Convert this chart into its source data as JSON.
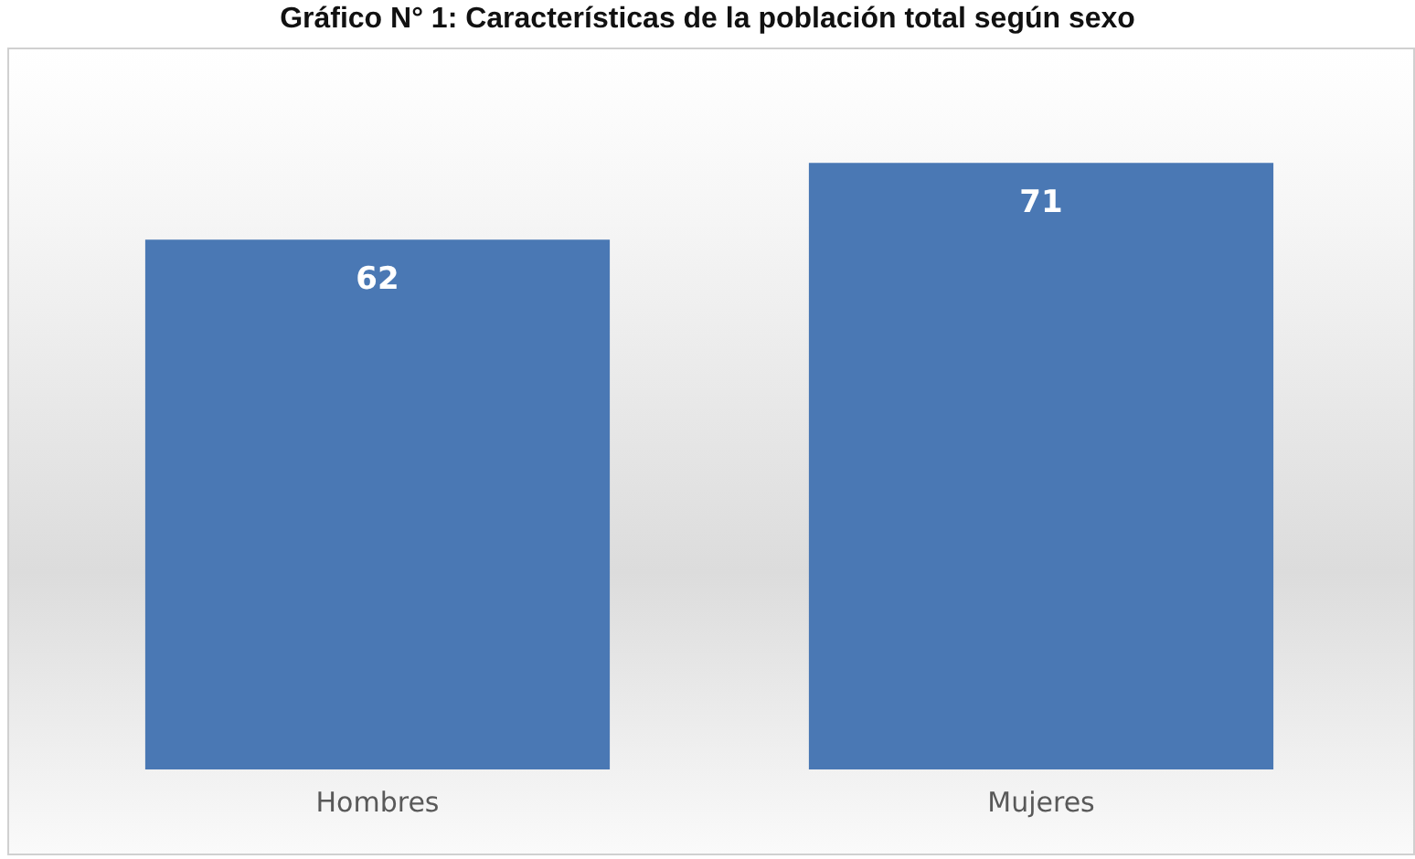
{
  "chart_data": {
    "type": "bar",
    "title": "Gráfico N° 1: Características de la población total según sexo",
    "categories": [
      "Hombres",
      "Mujeres"
    ],
    "values": [
      62,
      71
    ],
    "color": "#4a78b4",
    "tick_labels": "x",
    "data_labels": true,
    "grid": false,
    "legend": false
  }
}
